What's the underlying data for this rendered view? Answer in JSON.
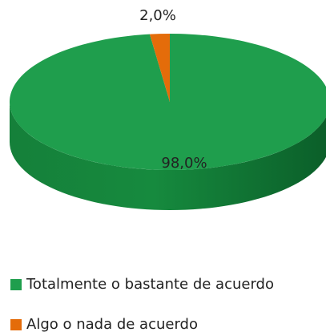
{
  "chart_data": {
    "type": "pie",
    "categories": [
      "Totalmente o bastante de acuerdo",
      "Algo o nada de acuerdo"
    ],
    "values": [
      98,
      2
    ],
    "value_labels": [
      "98,0%",
      "2,0%"
    ],
    "colors": [
      "#1f9e4d",
      "#e46c0a"
    ]
  }
}
